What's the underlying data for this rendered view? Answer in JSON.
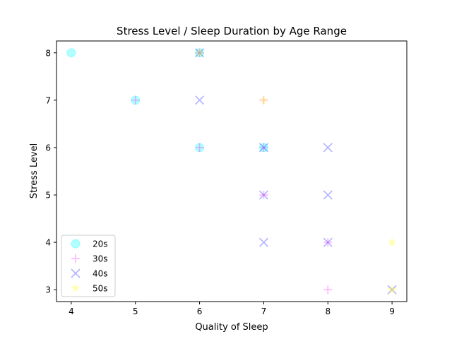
{
  "chart_data": {
    "type": "scatter",
    "title": "Stress Level / Sleep Duration by Age Range",
    "xlabel": "Quality of Sleep",
    "ylabel": "Stress Level",
    "xlim": [
      3.77,
      9.23
    ],
    "ylim": [
      2.75,
      8.25
    ],
    "xticks": [
      4,
      5,
      6,
      7,
      8,
      9
    ],
    "yticks": [
      3,
      4,
      5,
      6,
      7,
      8
    ],
    "grid": false,
    "legend_position": "lower-left",
    "series": [
      {
        "name": "20s",
        "marker": "circle",
        "color": "#00ffff",
        "points": [
          [
            4,
            8
          ],
          [
            5,
            7
          ],
          [
            6,
            6
          ],
          [
            6,
            8
          ],
          [
            7,
            6
          ]
        ]
      },
      {
        "name": "30s",
        "marker": "plus",
        "color": "#ff00ff",
        "points": [
          [
            5,
            7
          ],
          [
            6,
            6
          ],
          [
            6,
            8
          ],
          [
            7,
            6
          ],
          [
            7,
            5
          ],
          [
            8,
            4
          ],
          [
            8,
            3
          ],
          [
            7,
            7
          ]
        ]
      },
      {
        "name": "40s",
        "marker": "x",
        "color": "#0000ff",
        "points": [
          [
            6,
            8
          ],
          [
            6,
            7
          ],
          [
            7,
            6
          ],
          [
            7,
            5
          ],
          [
            7,
            4
          ],
          [
            8,
            6
          ],
          [
            8,
            5
          ],
          [
            8,
            4
          ],
          [
            9,
            3
          ]
        ]
      },
      {
        "name": "50s",
        "marker": "star",
        "color": "#ffff00",
        "points": [
          [
            6,
            8
          ],
          [
            7,
            7
          ],
          [
            9,
            4
          ],
          [
            9,
            3
          ]
        ]
      }
    ]
  }
}
